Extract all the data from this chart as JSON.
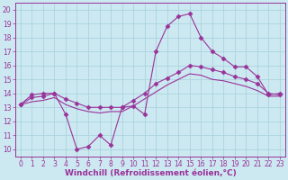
{
  "xlabel": "Windchill (Refroidissement éolien,°C)",
  "background_color": "#cce8f0",
  "grid_color": "#aad4e0",
  "line_color": "#993399",
  "marker_color": "#993399",
  "x_ticks": [
    0,
    1,
    2,
    3,
    4,
    5,
    6,
    7,
    8,
    9,
    10,
    11,
    12,
    13,
    14,
    15,
    16,
    17,
    18,
    19,
    20,
    21,
    22,
    23
  ],
  "y_ticks": [
    10,
    11,
    12,
    13,
    14,
    15,
    16,
    17,
    18,
    19,
    20
  ],
  "ylim": [
    9.5,
    20.5
  ],
  "xlim": [
    -0.5,
    23.5
  ],
  "series": [
    [
      13.2,
      13.9,
      14.0,
      14.0,
      12.5,
      10.0,
      10.2,
      11.0,
      10.3,
      13.0,
      13.1,
      12.5,
      17.0,
      18.8,
      19.5,
      19.7,
      18.0,
      17.0,
      16.5,
      15.9,
      15.9,
      15.2,
      13.9,
      14.0
    ],
    [
      13.2,
      13.7,
      13.8,
      14.0,
      13.6,
      13.3,
      13.0,
      13.0,
      13.0,
      13.0,
      13.5,
      14.0,
      14.7,
      15.1,
      15.5,
      16.0,
      15.9,
      15.7,
      15.5,
      15.2,
      15.0,
      14.7,
      14.0,
      13.9
    ],
    [
      13.2,
      13.4,
      13.5,
      13.7,
      13.2,
      12.9,
      12.7,
      12.6,
      12.7,
      12.7,
      13.1,
      13.6,
      14.1,
      14.6,
      15.0,
      15.4,
      15.3,
      15.0,
      14.9,
      14.7,
      14.5,
      14.2,
      13.8,
      13.8
    ]
  ],
  "tick_fontsize": 5.5,
  "label_fontsize": 6.5
}
